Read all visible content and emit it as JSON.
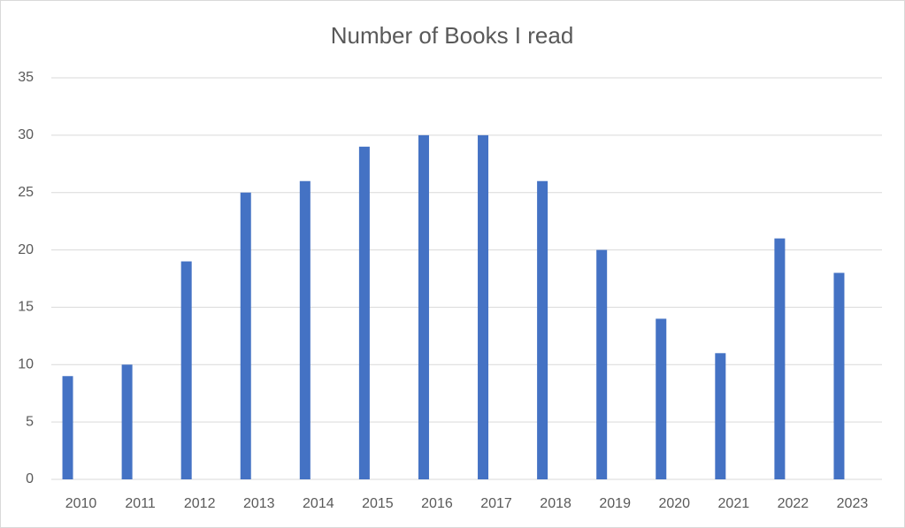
{
  "chart_data": {
    "type": "bar",
    "title": "Number of Books I read",
    "categories": [
      "2010",
      "2011",
      "2012",
      "2013",
      "2014",
      "2015",
      "2016",
      "2017",
      "2018",
      "2019",
      "2020",
      "2021",
      "2022",
      "2023"
    ],
    "values": [
      9,
      10,
      19,
      25,
      26,
      29,
      30,
      30,
      26,
      20,
      14,
      11,
      21,
      18
    ],
    "color": "#4472c4",
    "ylim": [
      0,
      35
    ],
    "yticks": [
      0,
      5,
      10,
      15,
      20,
      25,
      30,
      35
    ],
    "grid": true
  }
}
